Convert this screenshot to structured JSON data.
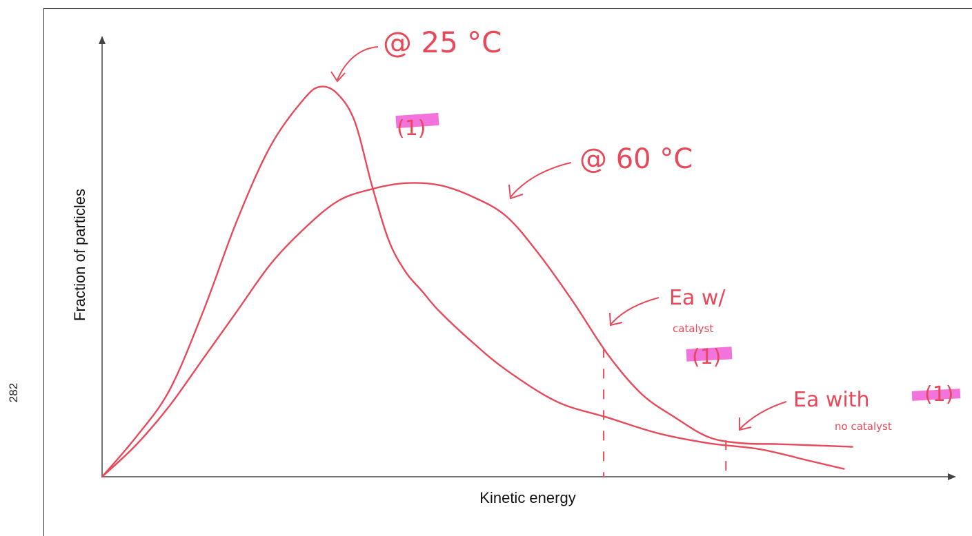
{
  "page_number": "282",
  "chart_data": {
    "type": "line",
    "xlabel": "Kinetic energy",
    "ylabel": "Fraction of particles",
    "xlim": [
      0,
      100
    ],
    "ylim": [
      0,
      100
    ],
    "grid": false,
    "series": [
      {
        "name": "@ 25 °C",
        "color": "#e8495a",
        "x": [
          0,
          4,
          8,
          12,
          16,
          20,
          24,
          26,
          28,
          30,
          32,
          34,
          36,
          38,
          40,
          44,
          48,
          54,
          60,
          66,
          72,
          78,
          84,
          88
        ],
        "y": [
          0,
          10,
          22,
          42,
          65,
          84,
          96,
          99,
          97,
          90,
          74,
          60,
          52,
          47,
          42,
          34,
          27,
          19,
          15,
          11,
          8.5,
          7,
          4,
          2
        ]
      },
      {
        "name": "@ 60 °C",
        "color": "#e8495a",
        "x": [
          0,
          4,
          8,
          12,
          16,
          20,
          24,
          28,
          32,
          36,
          40,
          44,
          48,
          52,
          56,
          60,
          64,
          68,
          72,
          76,
          80,
          84,
          89
        ],
        "y": [
          0,
          8,
          18,
          30,
          42,
          54,
          63,
          70,
          73,
          74.5,
          74,
          71,
          66,
          56,
          44,
          31,
          21,
          15,
          10,
          8.5,
          8.3,
          8,
          7.6
        ]
      }
    ],
    "markers": [
      {
        "label": "Ea w/ catalyst",
        "x": 59.5
      },
      {
        "label": "Ea with no catalyst",
        "x": 74
      }
    ],
    "annotations": [
      "@ 25 °C",
      "@ 60 °C",
      "Ea w/",
      "catalyst",
      "Ea with",
      "no catalyst",
      "(1)",
      "(1)",
      "(1)"
    ]
  }
}
